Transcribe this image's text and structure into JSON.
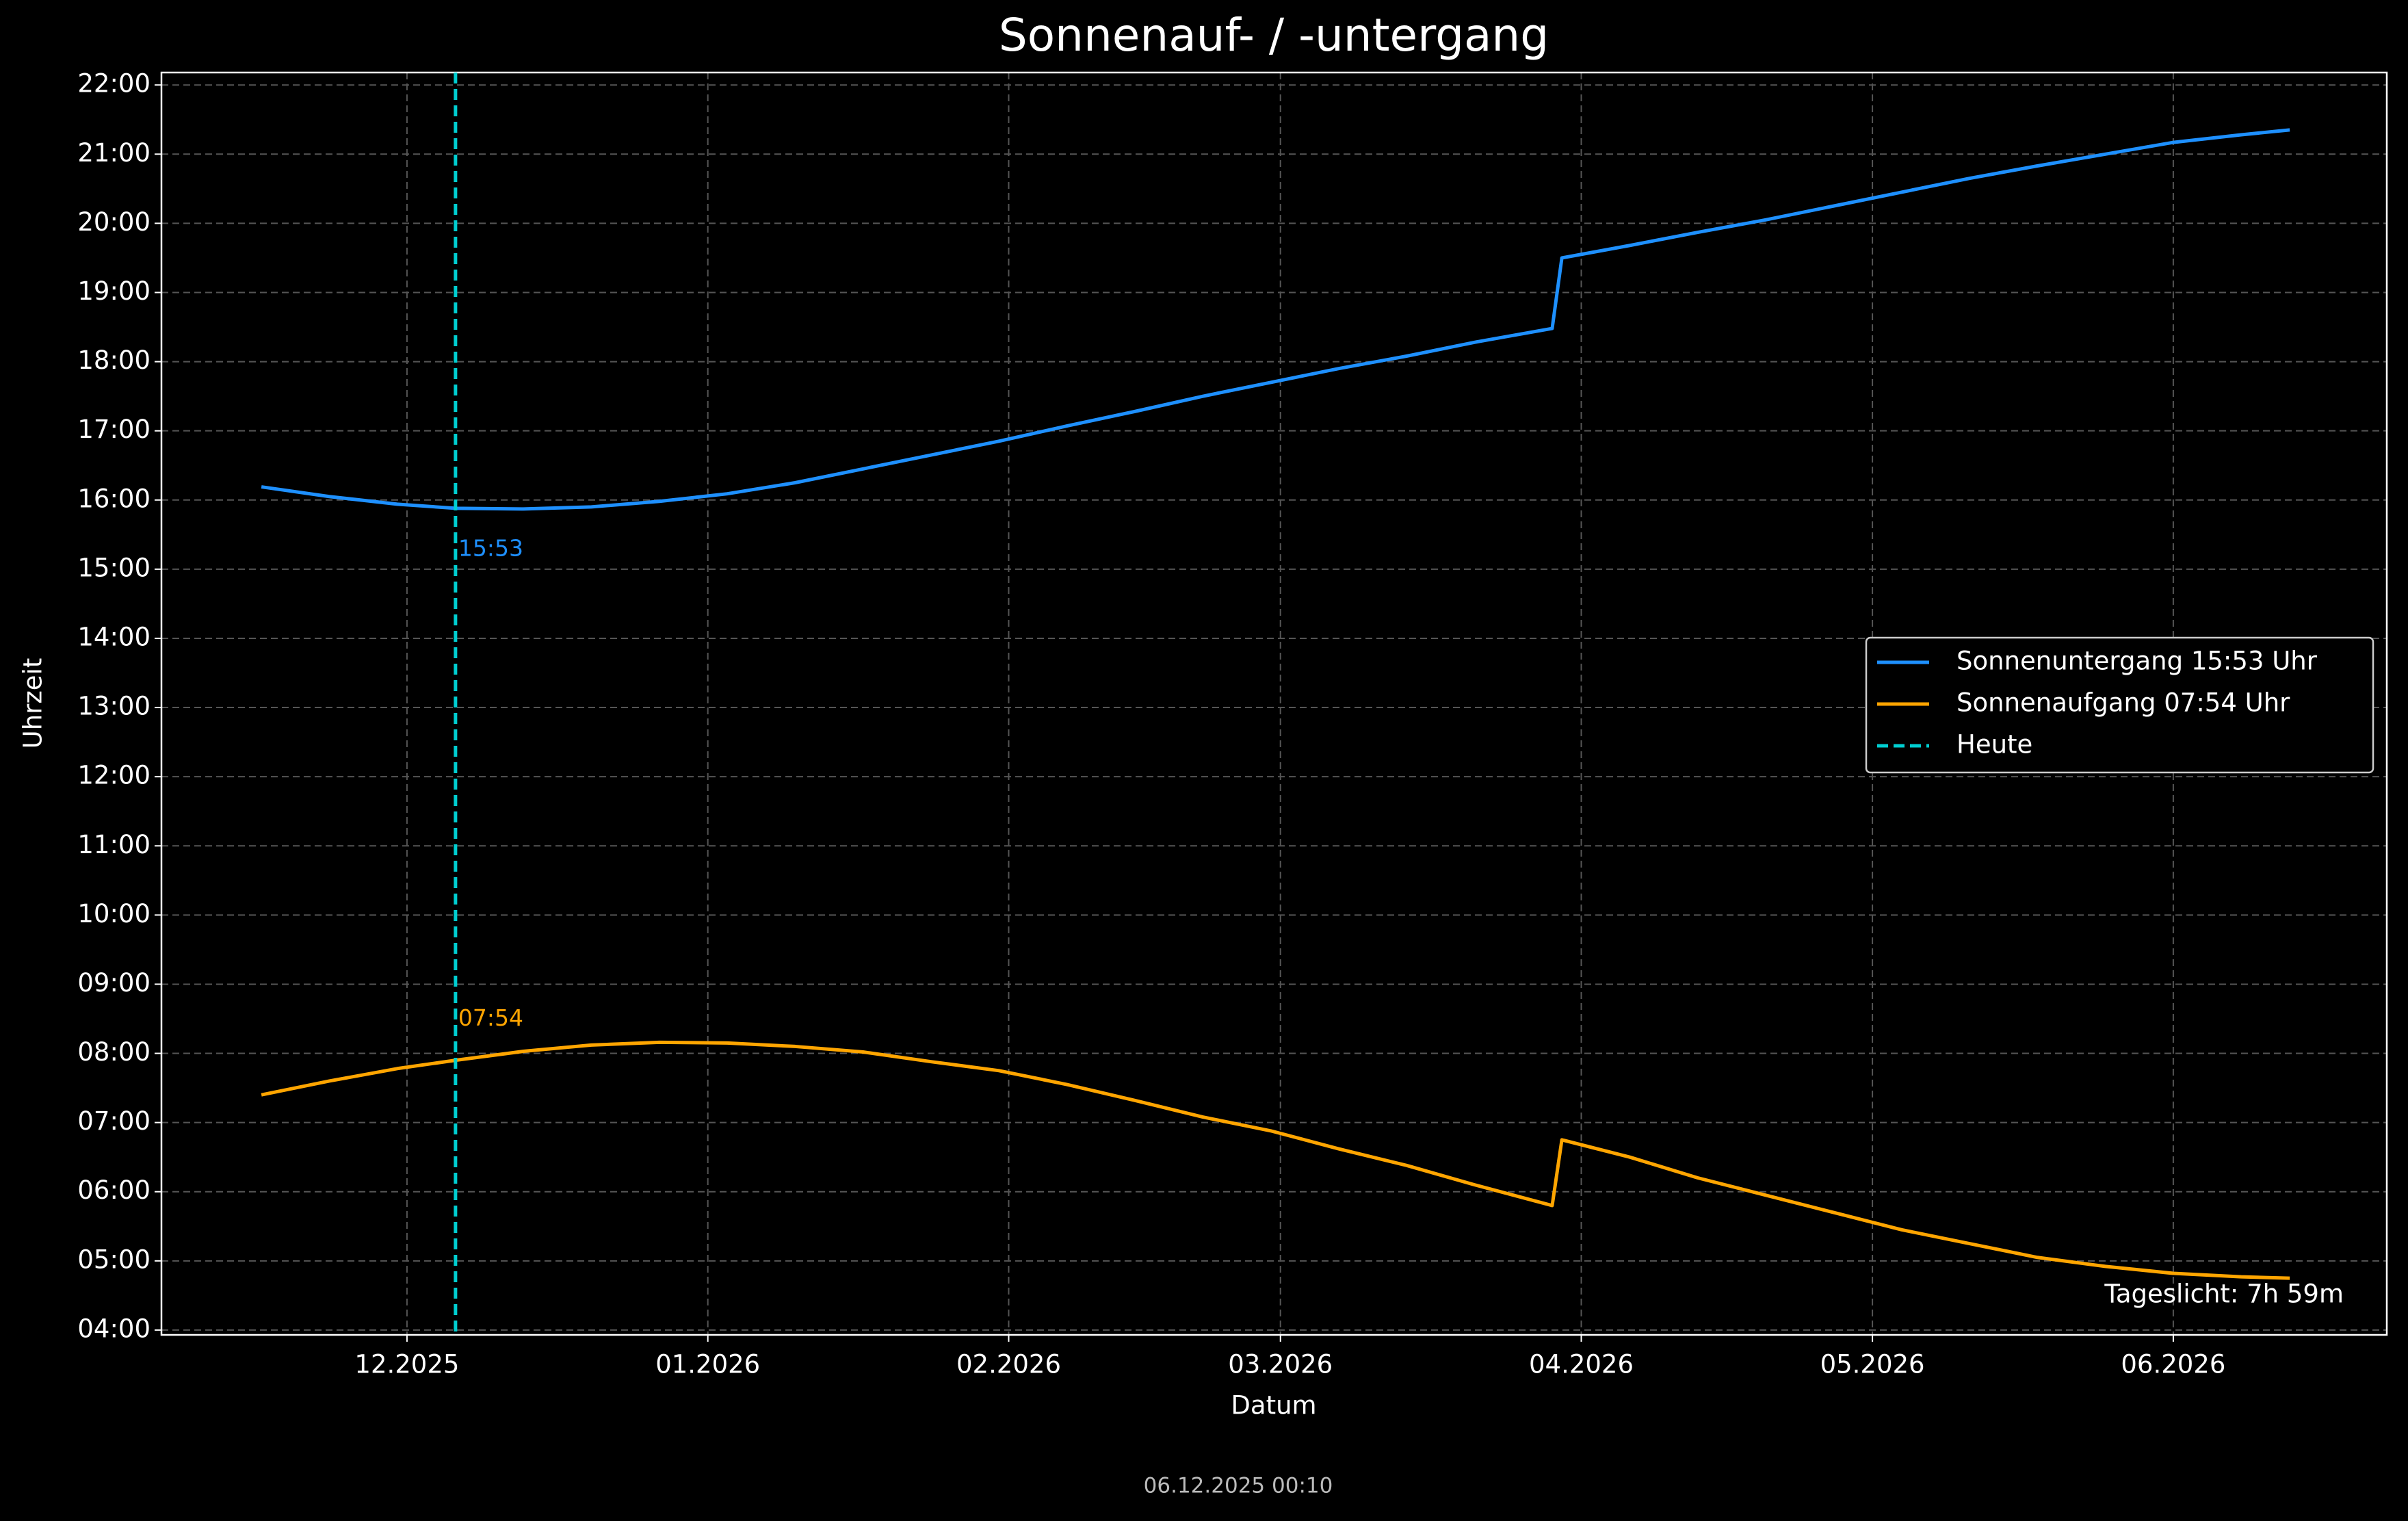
{
  "chart_data": {
    "type": "line",
    "title": "Sonnenauf- / -untergang",
    "xlabel": "Datum",
    "ylabel": "Uhrzeit",
    "x": [
      -15,
      -8,
      -1,
      5,
      12,
      19,
      26,
      33,
      40,
      47,
      54,
      61,
      68,
      75,
      82,
      89,
      96,
      103,
      110,
      118,
      119,
      126,
      133,
      140,
      147,
      154,
      161,
      168,
      175,
      182,
      189,
      194
    ],
    "series": [
      {
        "name": "Sonnenuntergang 15:53 Uhr",
        "color": "#1e90ff",
        "values": [
          16.19,
          16.05,
          15.94,
          15.88,
          15.87,
          15.9,
          15.98,
          16.09,
          16.25,
          16.45,
          16.65,
          16.85,
          17.07,
          17.28,
          17.5,
          17.7,
          17.9,
          18.08,
          18.28,
          18.48,
          19.5,
          19.68,
          19.87,
          20.05,
          20.25,
          20.45,
          20.65,
          20.83,
          21.0,
          21.17,
          21.28,
          21.35
        ]
      },
      {
        "name": "Sonnenaufgang 07:54 Uhr",
        "color": "#ffa500",
        "values": [
          7.4,
          7.6,
          7.78,
          7.9,
          8.03,
          8.12,
          8.16,
          8.15,
          8.1,
          8.02,
          7.88,
          7.75,
          7.55,
          7.32,
          7.08,
          6.88,
          6.62,
          6.38,
          6.1,
          5.8,
          6.75,
          6.5,
          6.2,
          5.95,
          5.7,
          5.45,
          5.25,
          5.05,
          4.92,
          4.82,
          4.77,
          4.75
        ]
      }
    ],
    "vline": {
      "name": "Heute",
      "x": 5,
      "color": "#00ced1"
    },
    "annotations": [
      {
        "text": "15:53",
        "color": "#1e90ff"
      },
      {
        "text": "07:54",
        "color": "#ffa500"
      }
    ],
    "note": "Tageslicht: 7h 59m",
    "footer": "06.12.2025 00:10",
    "xlim": [
      -25.3,
      204
    ],
    "ylim": [
      3.93,
      22.18
    ],
    "xticks": [
      {
        "value": 0,
        "label": "12.2025"
      },
      {
        "value": 31,
        "label": "01.2026"
      },
      {
        "value": 62,
        "label": "02.2026"
      },
      {
        "value": 90,
        "label": "03.2026"
      },
      {
        "value": 121,
        "label": "04.2026"
      },
      {
        "value": 151,
        "label": "05.2026"
      },
      {
        "value": 182,
        "label": "06.2026"
      }
    ],
    "yticks": [
      {
        "value": 4,
        "label": "04:00"
      },
      {
        "value": 5,
        "label": "05:00"
      },
      {
        "value": 6,
        "label": "06:00"
      },
      {
        "value": 7,
        "label": "07:00"
      },
      {
        "value": 8,
        "label": "08:00"
      },
      {
        "value": 9,
        "label": "09:00"
      },
      {
        "value": 10,
        "label": "10:00"
      },
      {
        "value": 11,
        "label": "11:00"
      },
      {
        "value": 12,
        "label": "12:00"
      },
      {
        "value": 13,
        "label": "13:00"
      },
      {
        "value": 14,
        "label": "14:00"
      },
      {
        "value": 15,
        "label": "15:00"
      },
      {
        "value": 16,
        "label": "16:00"
      },
      {
        "value": 17,
        "label": "17:00"
      },
      {
        "value": 18,
        "label": "18:00"
      },
      {
        "value": 19,
        "label": "19:00"
      },
      {
        "value": 20,
        "label": "20:00"
      },
      {
        "value": 21,
        "label": "21:00"
      },
      {
        "value": 22,
        "label": "22:00"
      }
    ],
    "grid": true,
    "legend": "right"
  }
}
